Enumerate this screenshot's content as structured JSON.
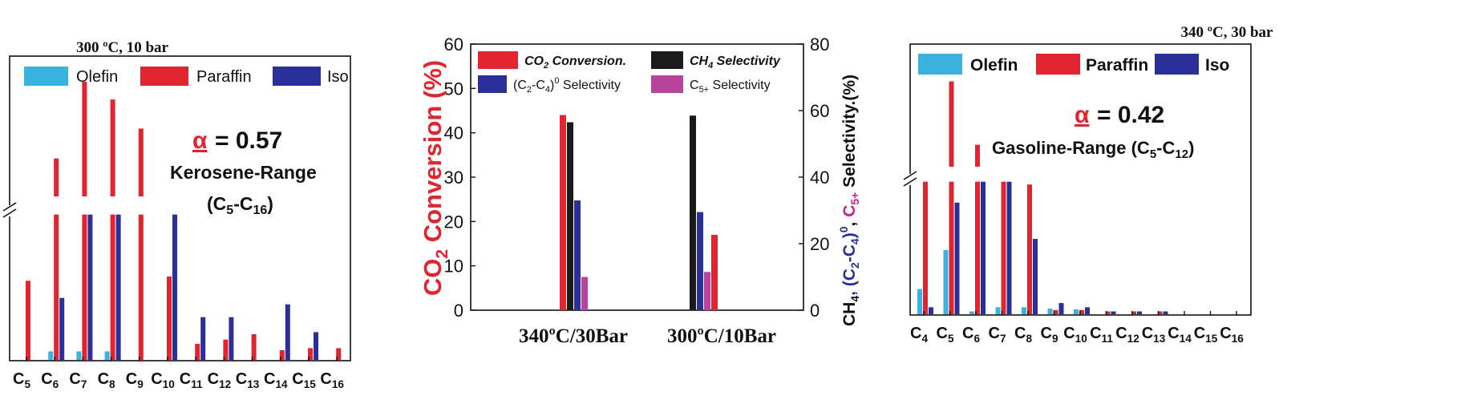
{
  "colors": {
    "olefin": "#3bb3e0",
    "paraffin": "#e0252f",
    "iso": "#2a2f9a",
    "black": "#1a1a1a",
    "purple": "#b8449c",
    "blue_text": "#2a2f9a",
    "red_text": "#e0252f",
    "pink_text": "#c0288f"
  },
  "chart_data": [
    {
      "type": "bar",
      "title": "300 ºC, 10 bar",
      "alpha_symbol": "α",
      "alpha_value": "= 0.57",
      "range_label": "Kerosene-Range",
      "range_sub_prefix": "(C",
      "range_sub_a": "5",
      "range_sub_mid": "-C",
      "range_sub_b": "16",
      "range_sub_suffix": ")",
      "axis_break": true,
      "categories": [
        "C5",
        "C6",
        "C7",
        "C8",
        "C9",
        "C10",
        "C11",
        "C12",
        "C13",
        "C14",
        "C15",
        "C16"
      ],
      "category_base": [
        "C",
        "C",
        "C",
        "C",
        "C",
        "C",
        "C",
        "C",
        "C",
        "C",
        "C",
        "C"
      ],
      "category_sub": [
        "5",
        "6",
        "7",
        "8",
        "9",
        "10",
        "11",
        "12",
        "13",
        "14",
        "15",
        "16"
      ],
      "series": [
        {
          "name": "Olefin",
          "values": [
            0,
            0.4,
            0.4,
            0.4,
            0,
            0,
            0,
            0,
            0,
            0,
            0,
            0
          ]
        },
        {
          "name": "Paraffin",
          "values": [
            3.7,
            11.5,
            21.0,
            18.8,
            15.2,
            3.9,
            0.75,
            0.95,
            1.2,
            0.45,
            0.55,
            0.55
          ]
        },
        {
          "name": "Iso",
          "values": [
            0,
            2.9,
            6.8,
            6.8,
            0,
            6.8,
            2.0,
            2.0,
            0,
            2.6,
            1.3,
            0
          ]
        }
      ],
      "break_at": 6.8,
      "y_lower_max": 7.2,
      "y_upper_range": [
        6.8,
        21.5
      ]
    },
    {
      "type": "bar",
      "categories": [
        "340ºC/30Bar",
        "300ºC/10Bar"
      ],
      "left_axis": {
        "label_prefix": "CO",
        "label_sub": "2",
        "label_suffix": " Conversion (%)",
        "ylim": [
          0,
          60
        ],
        "ticks": [
          "0",
          "10",
          "20",
          "30",
          "40",
          "50",
          "60"
        ]
      },
      "right_axis": {
        "label_a": "CH",
        "label_a_sub": "4",
        "label_b": ", (C",
        "label_b_sub1": "2",
        "label_b_mid": "-C",
        "label_b_sub2": "4",
        "label_b_close": ")",
        "label_b_sup": "0",
        "label_c": ", ",
        "label_c_text": "C",
        "label_c_sub": "5+",
        "label_d": " Selectivity.(%)",
        "ylim": [
          0,
          80
        ],
        "ticks": [
          "0",
          "20",
          "40",
          "60",
          "80"
        ]
      },
      "legend": [
        {
          "name": "CO",
          "sub": "2",
          "rest": " Conversion."
        },
        {
          "name": "CH",
          "sub": "4",
          "rest": " Selectivity"
        },
        {
          "name": "(C",
          "sub": "2",
          "rest": "-C",
          "sub2": "4",
          "rest2": ")",
          "sup": "0",
          "rest3": " Selectivity"
        },
        {
          "name": "C",
          "sub": "5+",
          "rest": " Selectivity"
        }
      ],
      "series": [
        {
          "name": "CO2 Conversion",
          "axis": "left",
          "values": [
            44,
            17
          ]
        },
        {
          "name": "CH4 Selectivity",
          "axis": "right",
          "values": [
            56.5,
            58.5
          ]
        },
        {
          "name": "(C2-C4)0 Selectivity",
          "axis": "right",
          "values": [
            33,
            29.5
          ]
        },
        {
          "name": "C5+ Selectivity",
          "axis": "right",
          "values": [
            10,
            11.5
          ]
        }
      ]
    },
    {
      "type": "bar",
      "title": "340 ºC, 30 bar",
      "alpha_symbol": "α",
      "alpha_value": "= 0.42",
      "range_label": "Gasoline-Range (C",
      "range_sub_a": "5",
      "range_sub_mid": "-C",
      "range_sub_b": "12",
      "range_sub_suffix": ")",
      "axis_break": true,
      "categories": [
        "C4",
        "C5",
        "C6",
        "C7",
        "C8",
        "C9",
        "C10",
        "C11",
        "C12",
        "C13",
        "C14",
        "C15",
        "C16"
      ],
      "category_base": [
        "C",
        "C",
        "C",
        "C",
        "C",
        "C",
        "C",
        "C",
        "C",
        "C",
        "C",
        "C",
        "C"
      ],
      "category_sub": [
        "4",
        "5",
        "6",
        "7",
        "8",
        "9",
        "10",
        "11",
        "12",
        "13",
        "14",
        "15",
        "16"
      ],
      "series": [
        {
          "name": "Olefin",
          "values": [
            1.8,
            4.6,
            0.2,
            0.5,
            0.5,
            0.4,
            0.35,
            0,
            0,
            0,
            0,
            0,
            0
          ]
        },
        {
          "name": "Paraffin",
          "values": [
            9.5,
            16.5,
            11.3,
            9.5,
            9.3,
            0.3,
            0.3,
            0.2,
            0.2,
            0.2,
            0,
            0,
            0
          ]
        },
        {
          "name": "Iso",
          "values": [
            0.5,
            8.0,
            9.5,
            9.5,
            5.4,
            0.8,
            0.5,
            0.2,
            0.2,
            0.2,
            0,
            0,
            0
          ]
        }
      ],
      "break_at": 9.5,
      "y_lower_max": 10.0,
      "y_upper_range": [
        9.5,
        16.8
      ]
    }
  ]
}
